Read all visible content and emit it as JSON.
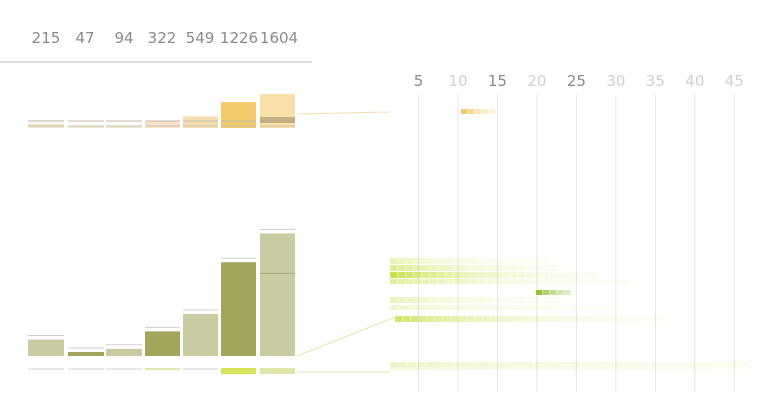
{
  "chart_data": {
    "type": "bar",
    "categories": [
      "215",
      "47",
      "94",
      "322",
      "549",
      "1226",
      "1604"
    ],
    "top_labels": [
      "215",
      "47",
      "94",
      "322",
      "549",
      "1226",
      "1604"
    ],
    "series": [
      {
        "values": [
          215,
          47,
          94,
          322,
          549,
          1226,
          1604
        ]
      }
    ],
    "ylim": [
      0,
      1700
    ],
    "grid": true,
    "x_ticks": [
      "5",
      "10",
      "15",
      "20",
      "25",
      "30",
      "35",
      "40",
      "45"
    ],
    "x_tick_emphasis": [
      "dark",
      "light",
      "dark",
      "light",
      "dark",
      "light",
      "light",
      "light",
      "light"
    ],
    "xlim": [
      0,
      48
    ]
  },
  "colors": {
    "bar_fill": [
      "#c9cca2",
      "#a3a55a",
      "#c9cca2",
      "#a3a55a",
      "#c9cca2",
      "#a3a55a",
      "#c9cca2"
    ],
    "upper_bar_fill": [
      "#f0e6cc",
      "#f0e6cc",
      "#f0e6cc",
      "#f8e0c8",
      "#f7dca8",
      "#f2c55a",
      "#f7dda0"
    ],
    "grid_line": "#e6e6e6",
    "tick_dark": "#8a8a8a",
    "tick_light": "#d0d0d0",
    "heat_green": "#c4de3a",
    "heat_orange": "#f2c55a",
    "connector": "#dfe6a8"
  }
}
